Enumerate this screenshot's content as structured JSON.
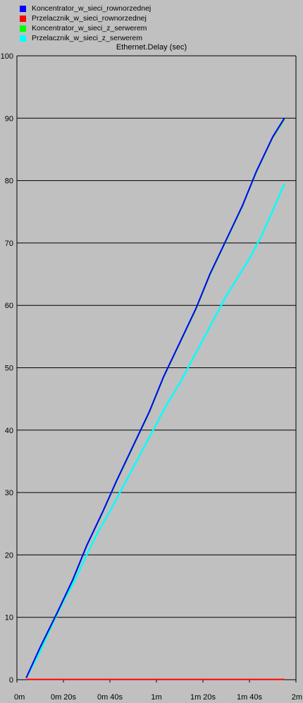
{
  "colors": {
    "background": "#c0c0c0",
    "grid": "#000000",
    "axis": "#000000"
  },
  "legend": [
    {
      "label": "Koncentrator_w_sieci_rownorzednej",
      "color": "#0000ff"
    },
    {
      "label": "Przelacznik_w_sieci_rownorzednej",
      "color": "#ff0000"
    },
    {
      "label": "Koncentrator_w_sieci_z_serwerem",
      "color": "#00ff00"
    },
    {
      "label": "Przelacznik_w_sieci_z_serwerem",
      "color": "#00ffff"
    }
  ],
  "chart_data": {
    "type": "line",
    "title": "Ethernet.Delay (sec)",
    "xlabel": "",
    "ylabel": "",
    "xlim": [
      0,
      120
    ],
    "ylim": [
      0,
      100
    ],
    "grid": true,
    "legend_position": "top-left",
    "x_ticks": [
      {
        "value": 0,
        "label": "0m"
      },
      {
        "value": 20,
        "label": "0m 20s"
      },
      {
        "value": 40,
        "label": "0m 40s"
      },
      {
        "value": 60,
        "label": "1m"
      },
      {
        "value": 80,
        "label": "1m 20s"
      },
      {
        "value": 100,
        "label": "1m 40s"
      },
      {
        "value": 120,
        "label": "2m"
      }
    ],
    "y_ticks": [
      0,
      10,
      20,
      30,
      40,
      50,
      60,
      70,
      80,
      90,
      100
    ],
    "series": [
      {
        "name": "Koncentrator_w_sieci_rownorzednej",
        "color": "#0000ff",
        "x": [
          4,
          10,
          17,
          24,
          30,
          37,
          43,
          50,
          57,
          63,
          70,
          77,
          83,
          90,
          97,
          103,
          110,
          115
        ],
        "y": [
          0.3,
          5.2,
          10.5,
          16,
          21.5,
          27,
          32,
          37.5,
          43,
          48.5,
          54,
          59.5,
          65,
          70.5,
          76,
          81.5,
          87,
          90
        ]
      },
      {
        "name": "Przelacznik_w_sieci_rownorzednej",
        "color": "#ff0000",
        "x": [
          4,
          30,
          60,
          90,
          115
        ],
        "y": [
          0.05,
          0.05,
          0.05,
          0.05,
          0.05
        ]
      },
      {
        "name": "Koncentrator_w_sieci_z_serwerem",
        "color": "#00ff00",
        "x": [
          4,
          10,
          17,
          24,
          30,
          37,
          43,
          50,
          57,
          63,
          70,
          77,
          83,
          90,
          97,
          103,
          110,
          115
        ],
        "y": [
          0.3,
          5.1,
          10.4,
          15.9,
          21.4,
          26.9,
          31.9,
          37.4,
          42.9,
          48.4,
          53.9,
          59.4,
          64.9,
          70.4,
          75.9,
          81.4,
          86.9,
          89.8
        ]
      },
      {
        "name": "Przelacznik_w_sieci_z_serwerem",
        "color": "#00ffff",
        "x": [
          4,
          10,
          16,
          20,
          25,
          30,
          35,
          40,
          45,
          50,
          55,
          60,
          65,
          70,
          75,
          80,
          85,
          90,
          95,
          100,
          105,
          108,
          111,
          115
        ],
        "y": [
          0.3,
          4.5,
          9.5,
          12.5,
          16,
          20,
          23.8,
          27,
          30.5,
          34,
          37.5,
          41,
          44.5,
          47.5,
          51,
          54.5,
          58,
          61.5,
          64.5,
          67.5,
          71,
          73.5,
          76,
          79.5
        ]
      }
    ]
  }
}
